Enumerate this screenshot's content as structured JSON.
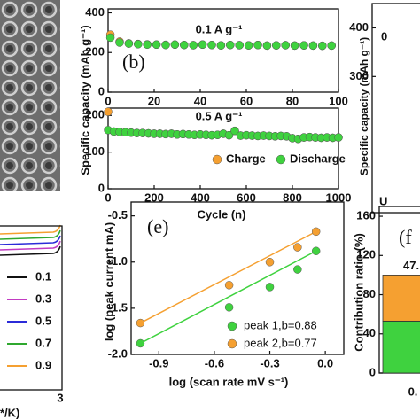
{
  "chart_data": [
    {
      "type": "scatter",
      "panel_label": "(b)",
      "annotation": "0.1 A g⁻¹",
      "ylabel": "Specific capacity (mAh g⁻¹)",
      "xlim": [
        0,
        100
      ],
      "xticks": [
        0,
        20,
        40,
        60,
        80,
        100
      ],
      "ylim": [
        0,
        420
      ],
      "yticks": [
        0,
        200,
        400
      ],
      "x": [
        1,
        5,
        9,
        13,
        17,
        21,
        25,
        29,
        33,
        37,
        41,
        45,
        49,
        53,
        57,
        61,
        65,
        69,
        73,
        77,
        81,
        85,
        89,
        93,
        97
      ],
      "series": [
        {
          "name": "Charge",
          "color": "#f5a031",
          "values": [
            290,
            255,
            246,
            243,
            241,
            240,
            239,
            240,
            238,
            237,
            240,
            238,
            236,
            238,
            237,
            236,
            238,
            235,
            236,
            237,
            235,
            236,
            235,
            234,
            235
          ]
        },
        {
          "name": "Discharge",
          "color": "#3fd23f",
          "values": [
            275,
            250,
            245,
            242,
            240,
            240,
            238,
            240,
            238,
            237,
            240,
            238,
            236,
            238,
            237,
            236,
            238,
            235,
            236,
            237,
            235,
            236,
            235,
            234,
            235
          ]
        }
      ]
    },
    {
      "type": "scatter",
      "annotation": "0.5 A g⁻¹",
      "xlabel": "Cycle (n)",
      "xlim": [
        0,
        1000
      ],
      "xticks": [
        0,
        200,
        400,
        600,
        800,
        1000
      ],
      "ylim": [
        0,
        220
      ],
      "yticks": [
        0,
        100,
        200
      ],
      "x": [
        0,
        25,
        50,
        75,
        100,
        125,
        150,
        175,
        200,
        225,
        250,
        275,
        300,
        325,
        350,
        375,
        400,
        425,
        450,
        475,
        500,
        525,
        550,
        575,
        600,
        625,
        650,
        675,
        700,
        725,
        750,
        775,
        800,
        825,
        850,
        875,
        900,
        925,
        950,
        975,
        1000
      ],
      "series": [
        {
          "name": "Charge",
          "color": "#f5a031",
          "values": [
            210,
            156,
            155,
            154,
            153,
            152,
            152,
            151,
            150,
            150,
            149,
            150,
            148,
            149,
            148,
            147,
            148,
            147,
            146,
            147,
            150,
            146,
            158,
            145,
            146,
            145,
            144,
            145,
            144,
            143,
            144,
            143,
            138,
            136,
            140,
            141,
            140,
            139,
            140,
            139,
            140
          ]
        },
        {
          "name": "Discharge",
          "color": "#3fd23f",
          "values": [
            160,
            156,
            155,
            154,
            153,
            152,
            152,
            151,
            150,
            150,
            149,
            150,
            148,
            149,
            148,
            147,
            148,
            147,
            146,
            147,
            150,
            146,
            158,
            145,
            146,
            145,
            144,
            145,
            144,
            143,
            144,
            143,
            138,
            136,
            140,
            141,
            140,
            139,
            140,
            139,
            140
          ]
        }
      ]
    },
    {
      "type": "partial",
      "ylabel": "Specific capacity (mAh g⁻¹)",
      "annotations": [
        "0",
        "U"
      ],
      "ylim": [
        20,
        450
      ],
      "yticks": [
        300,
        400
      ]
    },
    {
      "type": "legend-only",
      "xlabel": "*/K)",
      "xticks": [
        3
      ],
      "series": [
        {
          "name": "0.1",
          "color": "#111111"
        },
        {
          "name": "0.3",
          "color": "#c23bc2"
        },
        {
          "name": "0.5",
          "color": "#2b2bd8"
        },
        {
          "name": "0.7",
          "color": "#2fa82f"
        },
        {
          "name": "0.9",
          "color": "#f5a031"
        }
      ]
    },
    {
      "type": "scatter-fit",
      "panel_label": "(e)",
      "xlabel": "log (scan rate mV s⁻¹)",
      "ylabel": "log (peak current mA)",
      "xlim": [
        -1.05,
        0.1
      ],
      "xticks": [
        -0.9,
        -0.6,
        -0.3,
        {
          "value": 0,
          "label": "0.0"
        }
      ],
      "ylim": [
        -2.0,
        -0.35
      ],
      "yticks": [
        -0.5,
        {
          "value": -1,
          "label": "-1.0"
        },
        -1.5,
        {
          "value": -2,
          "label": "-2.0"
        }
      ],
      "x": [
        -1.0,
        -0.52,
        -0.3,
        -0.15,
        -0.05
      ],
      "series": [
        {
          "name": "peak 1,b=0.88",
          "color": "#3fd23f",
          "values": [
            -1.88,
            -1.49,
            -1.27,
            -1.08,
            -0.88
          ]
        },
        {
          "name": "peak 2,b=0.77",
          "color": "#f5a031",
          "values": [
            -1.66,
            -1.25,
            -1.0,
            -0.84,
            -0.67
          ]
        }
      ]
    },
    {
      "type": "bar",
      "panel_label": "(f",
      "ylabel": "Contribution ratio (%)",
      "categories": [
        "0."
      ],
      "ylim": [
        0,
        170
      ],
      "yticks": [
        0,
        40,
        80,
        120,
        160
      ],
      "series": [
        {
          "color": "#3fd23f",
          "values": [
            53
          ]
        },
        {
          "color": "#f5a031",
          "values": [
            47
          ],
          "value_labels": [
            "47."
          ]
        }
      ]
    }
  ]
}
